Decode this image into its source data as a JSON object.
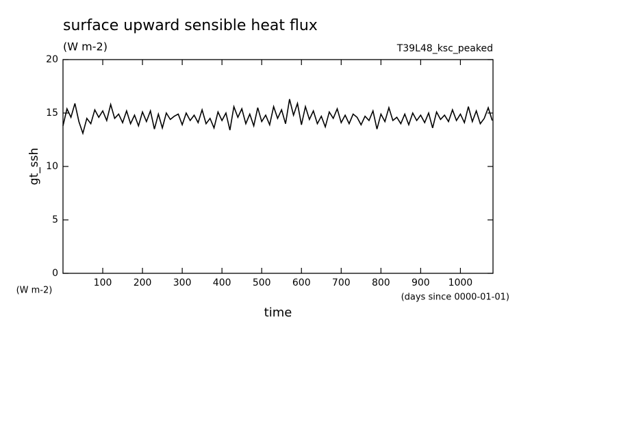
{
  "chart_data": {
    "type": "line",
    "title": "surface upward sensible heat flux",
    "subtitle": "(W m-2)",
    "run_label": "T39L48_ksc_peaked",
    "y_label": "gt_ssh",
    "y_unit": "(W m-2)",
    "x_label": "time",
    "x_unit": "(days since 0000-01-01)",
    "x": [
      0,
      10,
      20,
      30,
      40,
      50,
      60,
      70,
      80,
      90,
      100,
      110,
      120,
      130,
      140,
      150,
      160,
      170,
      180,
      190,
      200,
      210,
      220,
      230,
      240,
      250,
      260,
      270,
      280,
      290,
      300,
      310,
      320,
      330,
      340,
      350,
      360,
      370,
      380,
      390,
      400,
      410,
      420,
      430,
      440,
      450,
      460,
      470,
      480,
      490,
      500,
      510,
      520,
      530,
      540,
      550,
      560,
      570,
      580,
      590,
      600,
      610,
      620,
      630,
      640,
      650,
      660,
      670,
      680,
      690,
      700,
      710,
      720,
      730,
      740,
      750,
      760,
      770,
      780,
      790,
      800,
      810,
      820,
      830,
      840,
      850,
      860,
      870,
      880,
      890,
      900,
      910,
      920,
      930,
      940,
      950,
      960,
      970,
      980,
      990,
      1000,
      1010,
      1020,
      1030,
      1040,
      1050,
      1060,
      1070,
      1080
    ],
    "series": [
      {
        "name": "gt_ssh",
        "color": "#000000",
        "values": [
          13.8,
          15.4,
          14.6,
          15.9,
          14.2,
          13.1,
          14.5,
          14.0,
          15.3,
          14.6,
          15.2,
          14.3,
          15.8,
          14.5,
          14.9,
          14.1,
          15.2,
          14.0,
          14.8,
          13.8,
          15.1,
          14.2,
          15.2,
          13.5,
          14.9,
          13.6,
          15.0,
          14.4,
          14.7,
          14.9,
          13.9,
          15.0,
          14.3,
          14.8,
          14.1,
          15.3,
          14.0,
          14.5,
          13.6,
          15.1,
          14.3,
          15.0,
          13.4,
          15.6,
          14.6,
          15.4,
          14.0,
          14.9,
          13.8,
          15.5,
          14.2,
          14.8,
          13.9,
          15.6,
          14.5,
          15.3,
          14.0,
          16.3,
          14.8,
          15.9,
          13.9,
          15.6,
          14.4,
          15.2,
          14.0,
          14.7,
          13.7,
          15.1,
          14.5,
          15.4,
          14.1,
          14.8,
          14.0,
          14.9,
          14.6,
          13.9,
          14.7,
          14.3,
          15.2,
          13.5,
          14.9,
          14.2,
          15.5,
          14.3,
          14.6,
          14.0,
          14.9,
          13.9,
          15.0,
          14.3,
          14.8,
          14.1,
          15.0,
          13.6,
          15.1,
          14.4,
          14.8,
          14.2,
          15.3,
          14.3,
          14.9,
          14.1,
          15.6,
          14.2,
          15.2,
          14.0,
          14.5,
          15.5,
          14.3
        ]
      }
    ],
    "xlim": [
      0,
      1082
    ],
    "ylim": [
      0,
      20
    ],
    "xticks": [
      100,
      200,
      300,
      400,
      500,
      600,
      700,
      800,
      900,
      1000
    ],
    "yticks": [
      0,
      5,
      10,
      15,
      20
    ]
  }
}
